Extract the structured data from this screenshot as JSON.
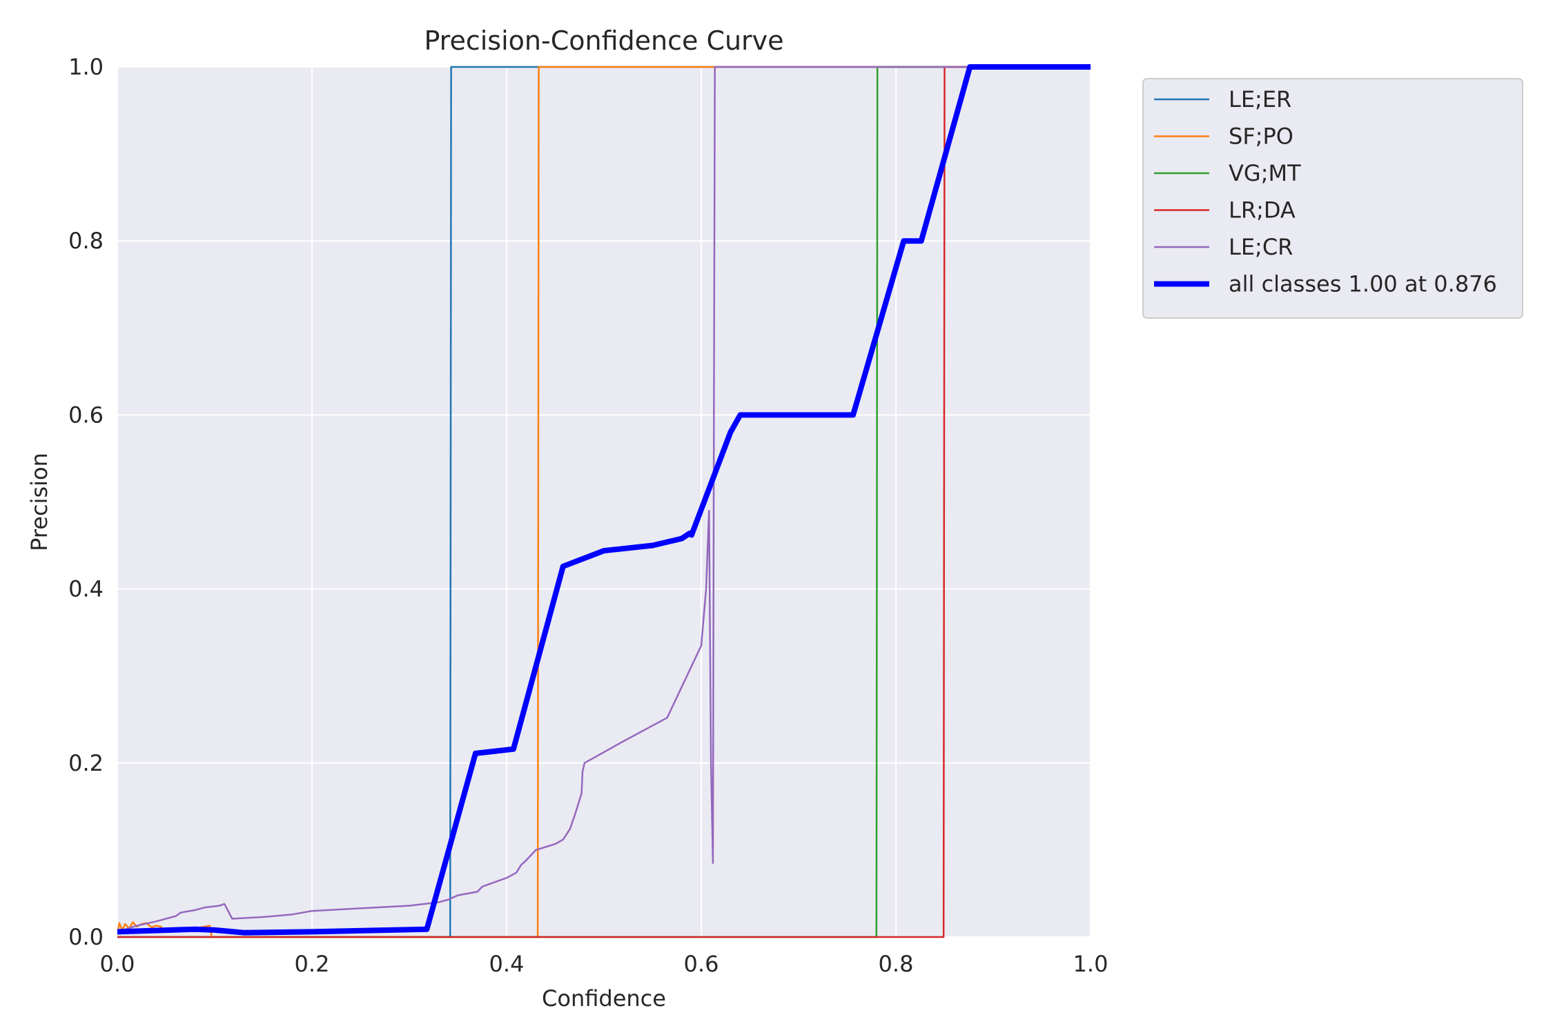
{
  "chart_data": {
    "type": "line",
    "title": "Precision-Confidence Curve",
    "xlabel": "Confidence",
    "ylabel": "Precision",
    "xlim": [
      0,
      1
    ],
    "ylim": [
      0,
      1
    ],
    "xticks": [
      "0.0",
      "0.2",
      "0.4",
      "0.6",
      "0.8",
      "1.0"
    ],
    "yticks": [
      "0.0",
      "0.2",
      "0.4",
      "0.6",
      "0.8",
      "1.0"
    ],
    "grid": true,
    "legend_position": "outside-top-right",
    "series": [
      {
        "name": "LE;ER",
        "color": "#1f77b4",
        "width": "thin",
        "points": [
          [
            0,
            0
          ],
          [
            0.342,
            0
          ],
          [
            0.343,
            1.0
          ],
          [
            1.0,
            1.0
          ]
        ]
      },
      {
        "name": "SF;PO",
        "color": "#ff7f0e",
        "width": "thin",
        "points": [
          [
            0,
            0.003
          ],
          [
            0.002,
            0.016
          ],
          [
            0.005,
            0.008
          ],
          [
            0.008,
            0.015
          ],
          [
            0.012,
            0.01
          ],
          [
            0.016,
            0.017
          ],
          [
            0.02,
            0.012
          ],
          [
            0.025,
            0.015
          ],
          [
            0.03,
            0.016
          ],
          [
            0.035,
            0.011
          ],
          [
            0.04,
            0.013
          ],
          [
            0.045,
            0.012
          ],
          [
            0.046,
            0.006
          ],
          [
            0.07,
            0.008
          ],
          [
            0.095,
            0.013
          ],
          [
            0.097,
            0.0
          ],
          [
            0.432,
            0.0
          ],
          [
            0.433,
            1.0
          ],
          [
            1.0,
            1.0
          ]
        ]
      },
      {
        "name": "VG;MT",
        "color": "#2ca02c",
        "width": "thin",
        "points": [
          [
            0,
            0
          ],
          [
            0.78,
            0
          ],
          [
            0.781,
            1.0
          ],
          [
            1.0,
            1.0
          ]
        ]
      },
      {
        "name": "LR;DA",
        "color": "#d62728",
        "width": "thin",
        "points": [
          [
            0,
            0
          ],
          [
            0.849,
            0
          ],
          [
            0.85,
            1.0
          ],
          [
            1.0,
            1.0
          ]
        ]
      },
      {
        "name": "LE;CR",
        "color": "#9467bd",
        "width": "thin",
        "points": [
          [
            0,
            0.006
          ],
          [
            0.02,
            0.013
          ],
          [
            0.04,
            0.018
          ],
          [
            0.06,
            0.024
          ],
          [
            0.065,
            0.028
          ],
          [
            0.08,
            0.031
          ],
          [
            0.09,
            0.034
          ],
          [
            0.105,
            0.036
          ],
          [
            0.11,
            0.038
          ],
          [
            0.118,
            0.021
          ],
          [
            0.15,
            0.023
          ],
          [
            0.18,
            0.026
          ],
          [
            0.2,
            0.03
          ],
          [
            0.25,
            0.033
          ],
          [
            0.3,
            0.036
          ],
          [
            0.33,
            0.04
          ],
          [
            0.34,
            0.043
          ],
          [
            0.35,
            0.048
          ],
          [
            0.37,
            0.052
          ],
          [
            0.375,
            0.058
          ],
          [
            0.39,
            0.064
          ],
          [
            0.4,
            0.068
          ],
          [
            0.41,
            0.074
          ],
          [
            0.415,
            0.083
          ],
          [
            0.42,
            0.088
          ],
          [
            0.43,
            0.1
          ],
          [
            0.45,
            0.107
          ],
          [
            0.458,
            0.112
          ],
          [
            0.465,
            0.124
          ],
          [
            0.47,
            0.14
          ],
          [
            0.477,
            0.165
          ],
          [
            0.478,
            0.19
          ],
          [
            0.48,
            0.2
          ],
          [
            0.52,
            0.225
          ],
          [
            0.565,
            0.252
          ],
          [
            0.6,
            0.335
          ],
          [
            0.605,
            0.4
          ],
          [
            0.608,
            0.49
          ],
          [
            0.61,
            0.2
          ],
          [
            0.612,
            0.085
          ],
          [
            0.613,
            0.6
          ],
          [
            0.614,
            1.0
          ],
          [
            1.0,
            1.0
          ]
        ]
      },
      {
        "name": "all classes 1.00 at 0.876",
        "color": "#0000ff",
        "width": "thick",
        "points": [
          [
            0,
            0.006
          ],
          [
            0.08,
            0.009
          ],
          [
            0.1,
            0.008
          ],
          [
            0.13,
            0.005
          ],
          [
            0.2,
            0.006
          ],
          [
            0.318,
            0.009
          ],
          [
            0.368,
            0.211
          ],
          [
            0.407,
            0.216
          ],
          [
            0.458,
            0.426
          ],
          [
            0.5,
            0.444
          ],
          [
            0.55,
            0.45
          ],
          [
            0.58,
            0.458
          ],
          [
            0.588,
            0.464
          ],
          [
            0.59,
            0.462
          ],
          [
            0.63,
            0.58
          ],
          [
            0.64,
            0.6
          ],
          [
            0.756,
            0.6
          ],
          [
            0.808,
            0.8
          ],
          [
            0.826,
            0.8
          ],
          [
            0.876,
            1.0
          ],
          [
            1.0,
            1.0
          ]
        ]
      }
    ]
  }
}
